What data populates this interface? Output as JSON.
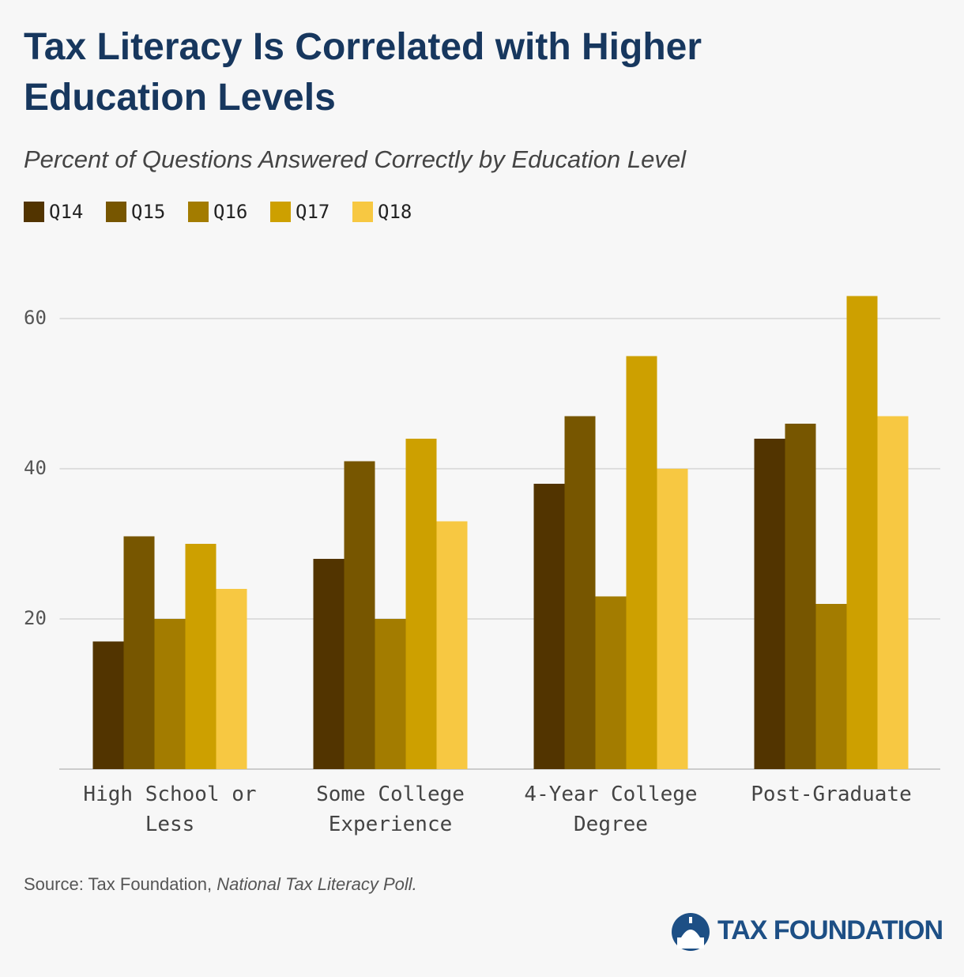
{
  "chart_data": {
    "type": "bar",
    "title": "Tax Literacy Is Correlated with Higher Education Levels",
    "subtitle": "Percent of Questions Answered Correctly by Education Level",
    "categories": [
      "High School or Less",
      "Some College Experience",
      "4-Year College Degree",
      "Post-Graduate"
    ],
    "series": [
      {
        "name": "Q14",
        "color": "#523400",
        "values": [
          17,
          28,
          38,
          44
        ]
      },
      {
        "name": "Q15",
        "color": "#775600",
        "values": [
          31,
          41,
          47,
          46
        ]
      },
      {
        "name": "Q16",
        "color": "#a37c00",
        "values": [
          20,
          20,
          23,
          22
        ]
      },
      {
        "name": "Q17",
        "color": "#cda000",
        "values": [
          30,
          44,
          55,
          63
        ]
      },
      {
        "name": "Q18",
        "color": "#f7c842",
        "values": [
          24,
          33,
          40,
          47
        ]
      }
    ],
    "ylim": [
      0,
      66
    ],
    "yticks": [
      20,
      40,
      60
    ],
    "grid": true,
    "legend": "top-left",
    "source": "Source: Tax Foundation, ",
    "source_title": "National Tax Literacy Poll.",
    "logo": "TAX FOUNDATION"
  }
}
